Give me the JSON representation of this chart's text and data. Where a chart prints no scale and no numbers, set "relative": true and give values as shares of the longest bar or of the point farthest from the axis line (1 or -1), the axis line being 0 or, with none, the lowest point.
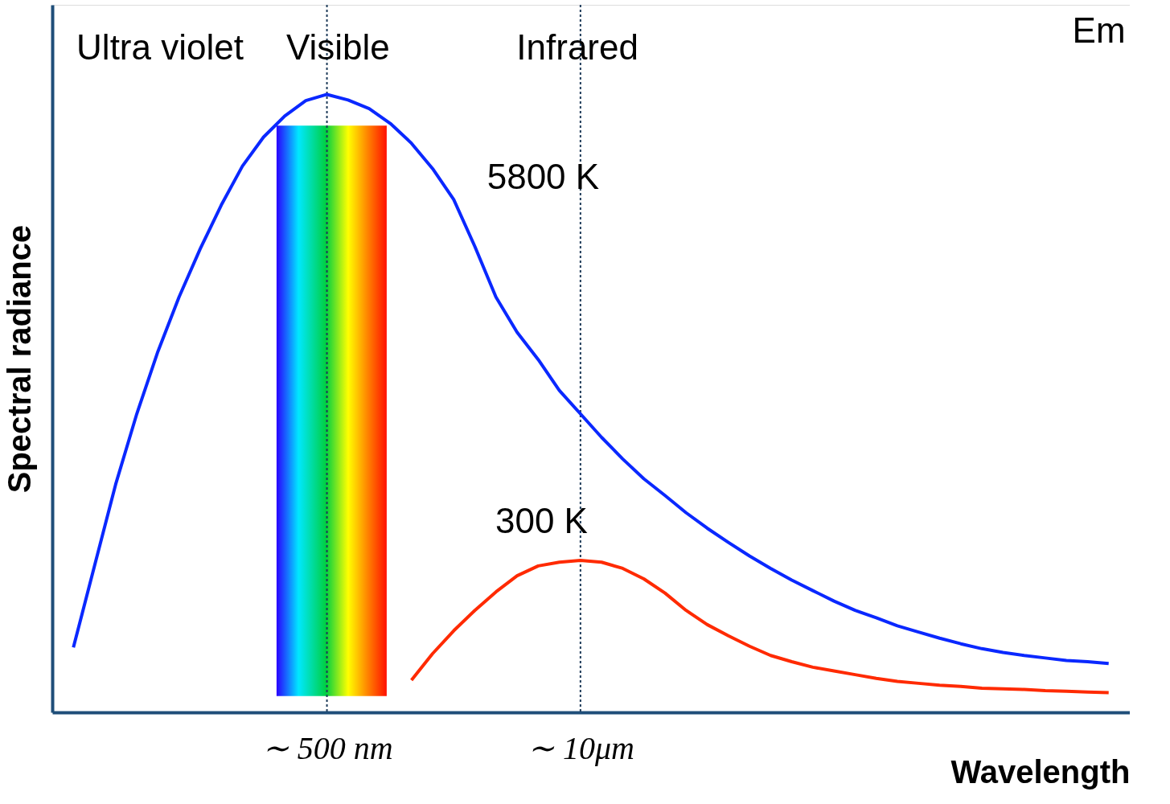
{
  "chart_data": {
    "type": "line",
    "relative": true,
    "xlabel": "Wavelength",
    "ylabel": "Spectral  radiance",
    "categories": [
      null,
      null,
      null,
      null,
      null,
      null,
      null,
      null,
      null,
      null,
      null,
      null,
      "∼ 500 nm",
      null,
      null,
      null,
      null,
      null,
      null,
      null,
      null,
      null,
      null,
      null,
      "∼ 10μm",
      null,
      null,
      null,
      null,
      null,
      null,
      null,
      null,
      null,
      null,
      null,
      null,
      null,
      null,
      null,
      null,
      null,
      null,
      null,
      null,
      null,
      null,
      null,
      null,
      null
    ],
    "grid": false,
    "marker": "none",
    "line_style": "solid",
    "series": [
      {
        "color": "#0a28ff",
        "values": [
          0.105,
          0.237,
          0.369,
          0.483,
          0.584,
          0.672,
          0.75,
          0.821,
          0.884,
          0.931,
          0.965,
          0.99,
          1.0,
          0.991,
          0.977,
          0.953,
          0.921,
          0.88,
          0.83,
          0.754,
          0.672,
          0.615,
          0.571,
          0.521,
          0.483,
          0.445,
          0.41,
          0.378,
          0.351,
          0.323,
          0.298,
          0.275,
          0.253,
          0.233,
          0.214,
          0.197,
          0.18,
          0.165,
          0.153,
          0.14,
          0.13,
          0.12,
          0.111,
          0.103,
          0.097,
          0.092,
          0.088,
          0.084,
          0.082,
          0.079
        ]
      },
      {
        "color": "#ff2a00",
        "values": [
          null,
          null,
          null,
          null,
          null,
          null,
          null,
          null,
          null,
          null,
          null,
          null,
          null,
          null,
          null,
          null,
          0.052,
          0.095,
          0.132,
          0.165,
          0.195,
          0.221,
          0.237,
          0.243,
          0.246,
          0.243,
          0.233,
          0.216,
          0.193,
          0.165,
          0.142,
          0.124,
          0.107,
          0.092,
          0.082,
          0.073,
          0.067,
          0.061,
          0.055,
          0.05,
          0.047,
          0.044,
          0.042,
          0.039,
          0.038,
          0.037,
          0.035,
          0.034,
          0.033,
          0.032
        ]
      }
    ],
    "ref_lines": [
      {
        "axis": "x",
        "value": "∼ 500 nm",
        "color": "#1f3c5a",
        "line_style": "dotted"
      },
      {
        "axis": "x",
        "value": "∼ 10μm",
        "color": "#1f3c5a",
        "line_style": "dotted"
      }
    ],
    "annotations": [
      "Ultra violet",
      "Visible",
      "Infrared",
      "5800 K",
      "300 K",
      "Em"
    ]
  }
}
